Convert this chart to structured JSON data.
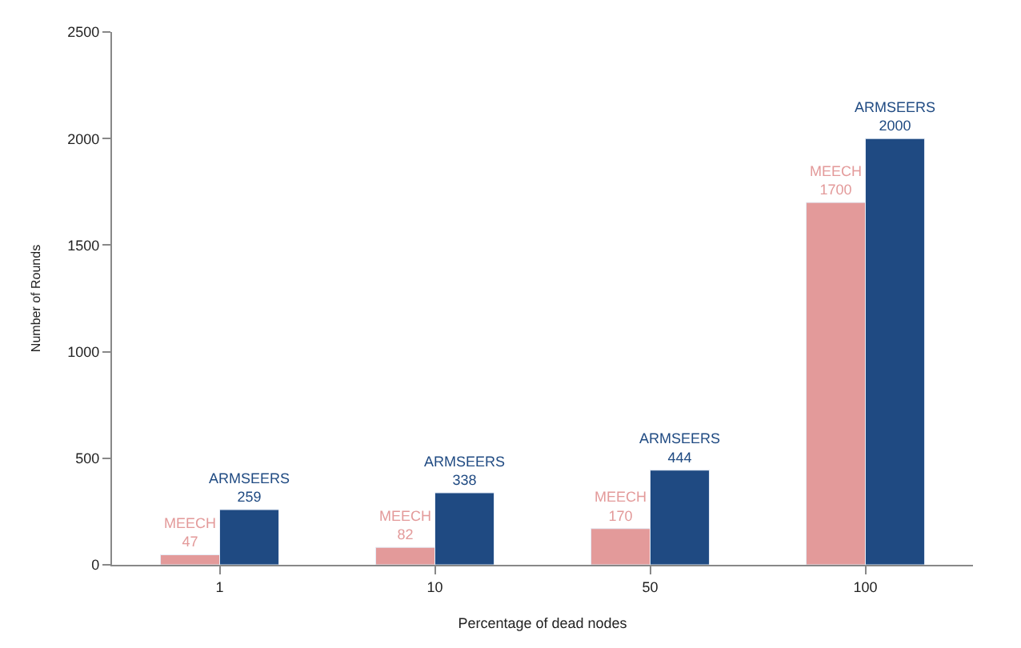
{
  "chart_data": {
    "type": "bar",
    "xlabel": "Percentage of dead nodes",
    "ylabel": "Number of Rounds",
    "categories": [
      "1",
      "10",
      "50",
      "100"
    ],
    "series": [
      {
        "name": "MEECH",
        "color": "#e39a9a",
        "values": [
          47,
          82,
          170,
          1700
        ]
      },
      {
        "name": "ARMSEERS",
        "color": "#1f4a82",
        "values": [
          259,
          338,
          444,
          2000
        ]
      }
    ],
    "ylim": [
      0,
      2500
    ],
    "yticks": [
      0,
      500,
      1000,
      1500,
      2000,
      2500
    ],
    "data_labels": true,
    "legend": false
  }
}
